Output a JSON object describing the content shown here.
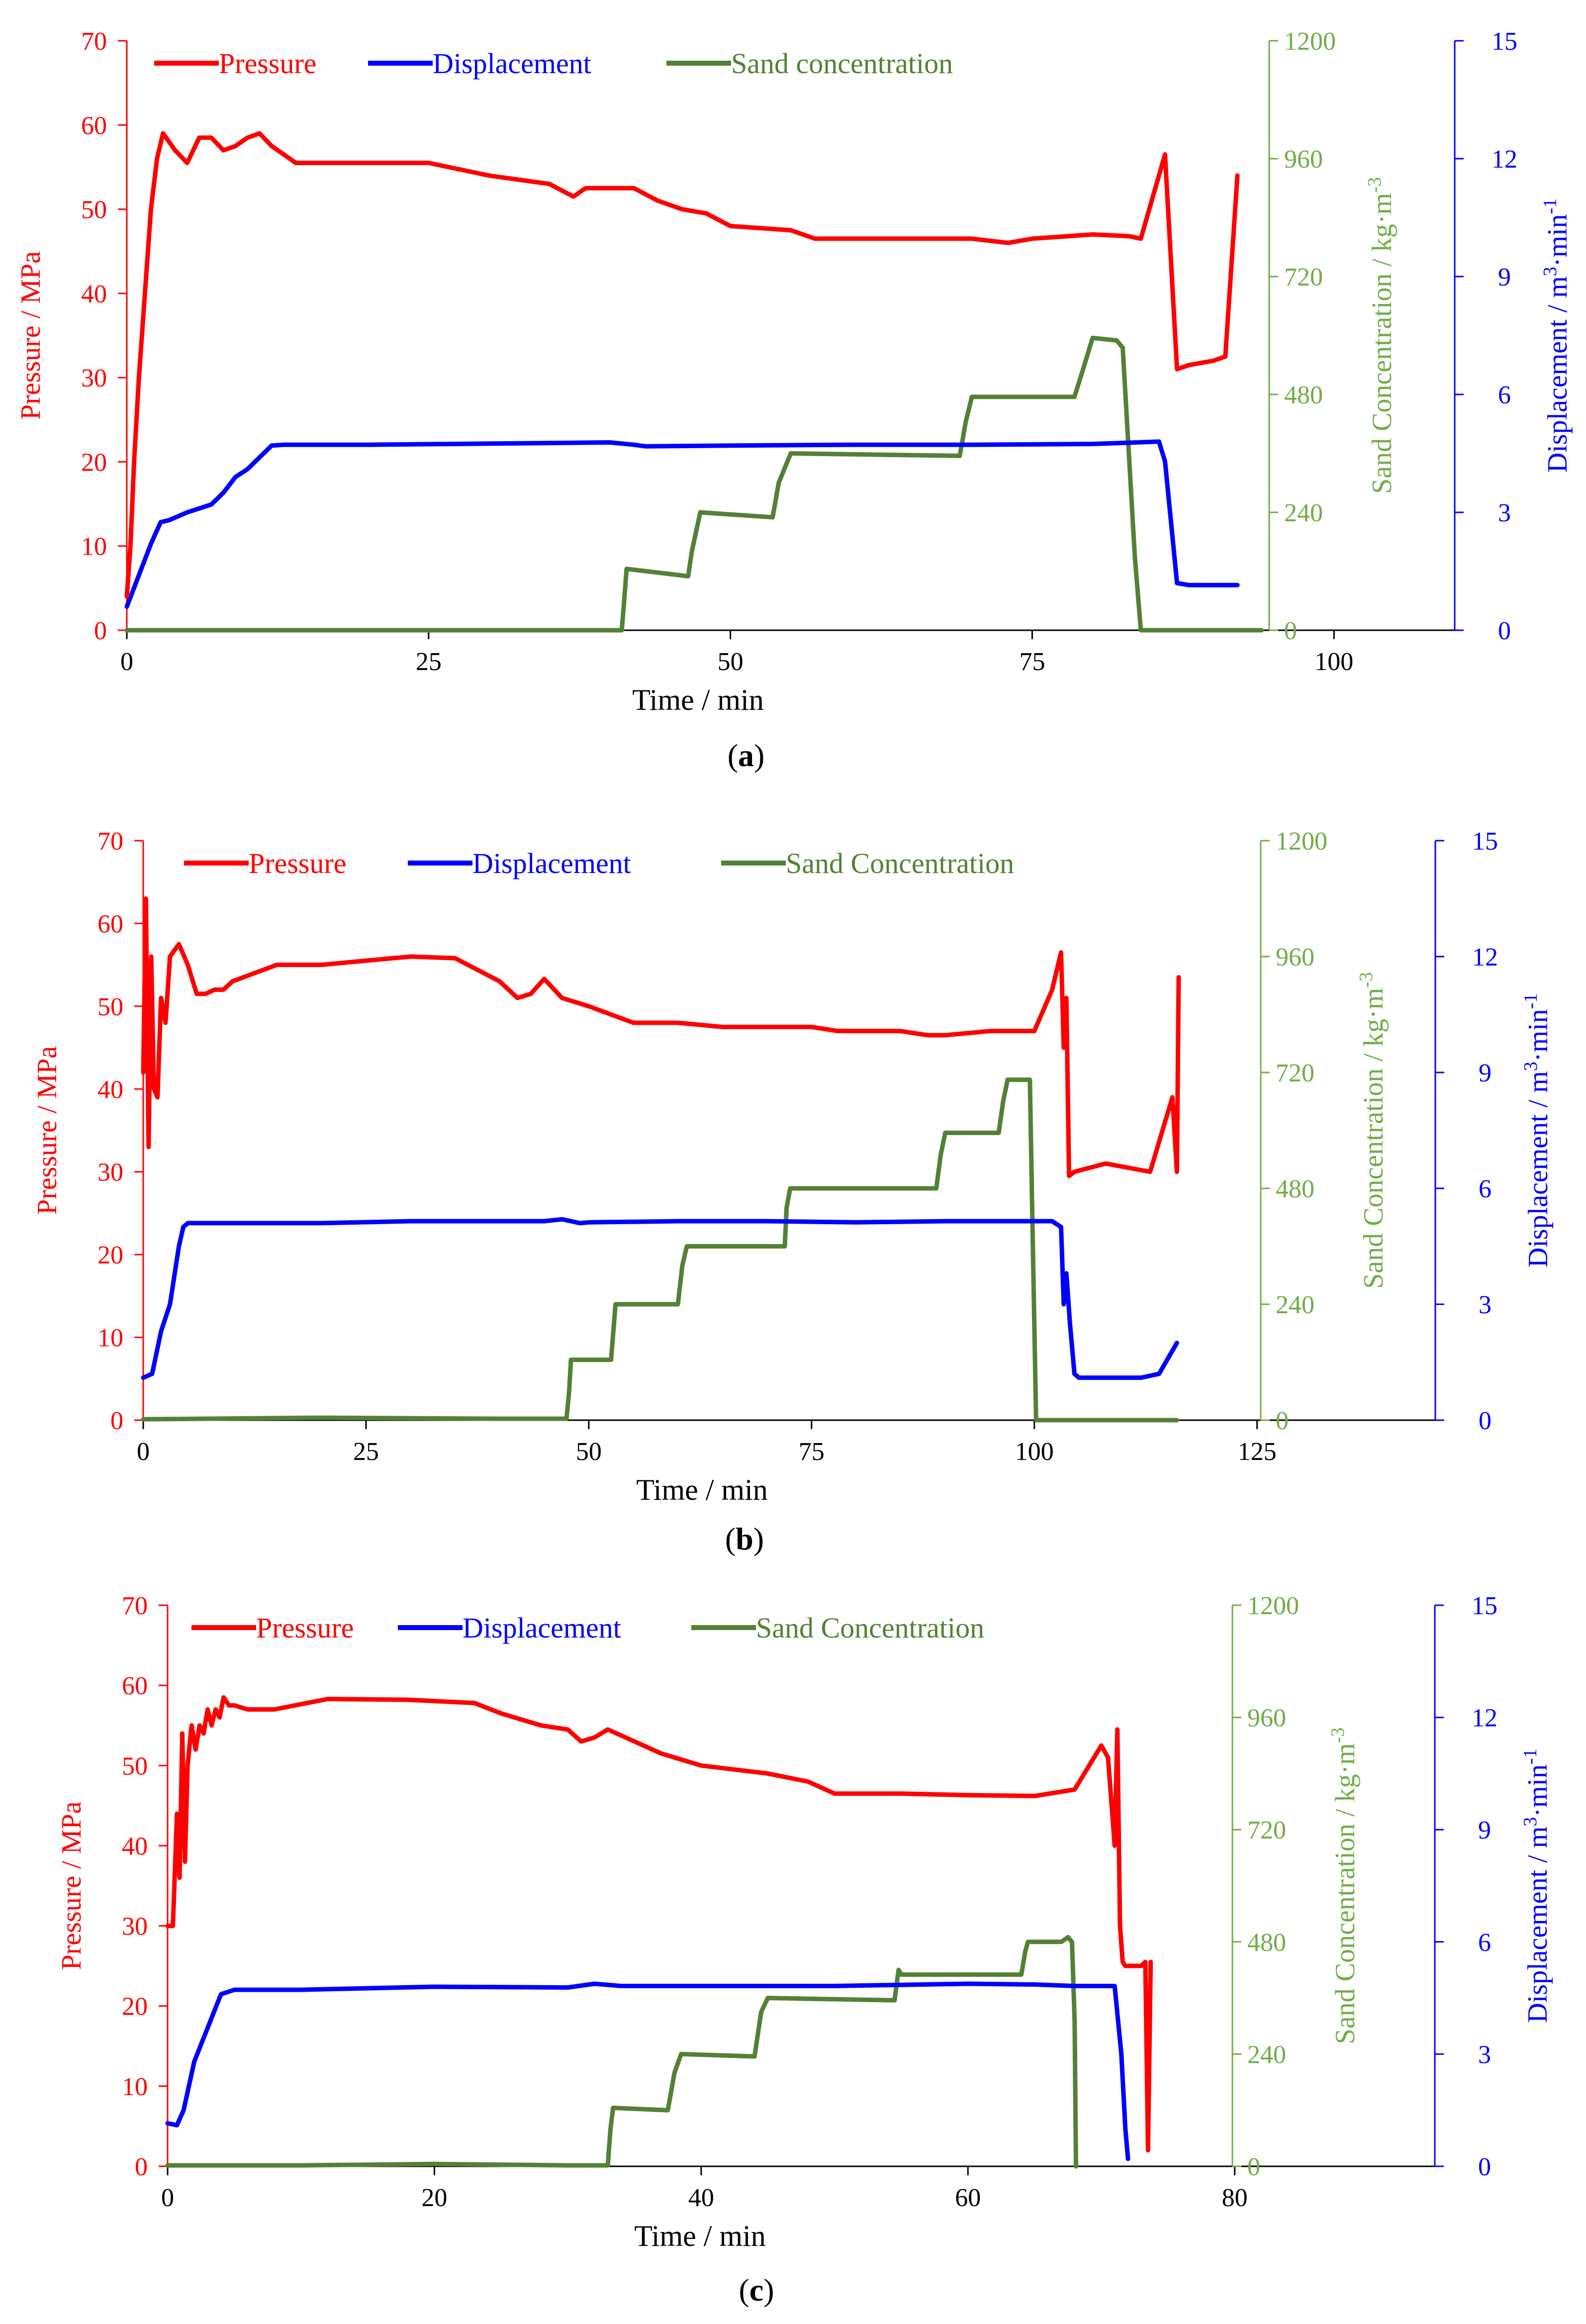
{
  "colors": {
    "pressure": "#ff0000",
    "displacement": "#0000ff",
    "sand": "#538135",
    "sand_axis": "#70ad47",
    "axis": "#000000"
  },
  "chart_data": [
    {
      "id": "a",
      "type": "line",
      "caption": "(a)",
      "caption_parts": {
        "open": "(",
        "letter": "a",
        "close": ")"
      },
      "xlabel": "Time / min",
      "xlim": [
        0,
        110
      ],
      "xticks": [
        0,
        25,
        50,
        75,
        100
      ],
      "xtick_labels": [
        "0",
        "25",
        "50",
        "75",
        "100"
      ],
      "axes": {
        "left": {
          "label": "Pressure / MPa",
          "lim": [
            0,
            70
          ],
          "ticks": [
            0,
            10,
            20,
            30,
            40,
            50,
            60,
            70
          ],
          "tick_labels": [
            "0",
            "10",
            "20",
            "30",
            "40",
            "50",
            "60",
            "70"
          ]
        },
        "sand": {
          "label": "Sand Concentration / kg·m",
          "label_sup": "-3",
          "lim": [
            0,
            1200
          ],
          "ticks": [
            0,
            240,
            480,
            720,
            960,
            1200
          ],
          "tick_labels": [
            "0",
            "240",
            "480",
            "720",
            "960",
            "1200"
          ]
        },
        "disp": {
          "label": "Displacement / m",
          "label_sup": "3",
          "label_mid": "·min",
          "label_sup2": "-1",
          "lim": [
            0,
            15
          ],
          "ticks": [
            0,
            3,
            6,
            9,
            12,
            15
          ],
          "tick_labels": [
            "0",
            "3",
            "6",
            "9",
            "12",
            "15"
          ]
        }
      },
      "legend": [
        "Pressure",
        "Displacement",
        "Sand concentration"
      ],
      "series": [
        {
          "name": "Pressure",
          "axis": "left",
          "x": [
            0,
            0.3,
            0.6,
            1,
            1.5,
            2,
            2.5,
            3,
            4,
            5,
            6,
            7,
            8,
            9,
            10,
            11,
            12,
            14,
            20,
            25,
            30,
            35,
            37,
            38,
            40,
            42,
            44,
            46,
            48,
            50,
            55,
            57,
            60,
            65,
            70,
            73,
            75,
            80,
            83,
            84,
            86,
            87,
            88,
            90,
            91,
            92
          ],
          "values": [
            4,
            10,
            20,
            30,
            40,
            50,
            56,
            59,
            57,
            55.5,
            58.5,
            58.5,
            57,
            57.5,
            58.5,
            59,
            57.5,
            55.5,
            55.5,
            55.5,
            54,
            53,
            51.5,
            52.5,
            52.5,
            52.5,
            51,
            50,
            49.5,
            48,
            47.5,
            46.5,
            46.5,
            46.5,
            46.5,
            46,
            46.5,
            47,
            46.8,
            46.5,
            56.5,
            31,
            31.5,
            32,
            32.5,
            54
          ]
        },
        {
          "name": "Displacement",
          "axis": "disp",
          "x": [
            0,
            2,
            2.8,
            3.5,
            5,
            7,
            8,
            9,
            10,
            11,
            12,
            13,
            20,
            30,
            40,
            42,
            43,
            50,
            60,
            70,
            80,
            85.5,
            86,
            87,
            88,
            92
          ],
          "values": [
            0.6,
            2.2,
            2.75,
            2.8,
            3.0,
            3.2,
            3.5,
            3.9,
            4.1,
            4.4,
            4.7,
            4.72,
            4.72,
            4.75,
            4.78,
            4.72,
            4.68,
            4.7,
            4.72,
            4.72,
            4.74,
            4.8,
            4.3,
            1.2,
            1.15,
            1.15
          ]
        },
        {
          "name": "Sand concentration",
          "axis": "sand",
          "x": [
            0,
            41,
            41.2,
            41.4,
            46.5,
            46.8,
            47.5,
            53.5,
            54,
            55,
            69,
            69.5,
            70,
            78.5,
            79.2,
            80,
            82,
            82.5,
            83.5,
            84,
            94
          ],
          "values": [
            0,
            0,
            60,
            125,
            110,
            160,
            240,
            230,
            300,
            360,
            355,
            425,
            475,
            475,
            530,
            595,
            590,
            575,
            150,
            0,
            0
          ]
        }
      ]
    },
    {
      "id": "b",
      "type": "line",
      "caption": "(b)",
      "caption_parts": {
        "open": "(",
        "letter": "b",
        "close": ")"
      },
      "xlabel": "Time / min",
      "xlim": [
        0,
        145
      ],
      "xticks": [
        0,
        25,
        50,
        75,
        100,
        125
      ],
      "xtick_labels": [
        "0",
        "25",
        "50",
        "75",
        "100",
        "125"
      ],
      "axes": {
        "left": {
          "label": "Pressure / MPa",
          "lim": [
            0,
            70
          ],
          "ticks": [
            0,
            10,
            20,
            30,
            40,
            50,
            60,
            70
          ],
          "tick_labels": [
            "0",
            "10",
            "20",
            "30",
            "40",
            "50",
            "60",
            "70"
          ]
        },
        "sand": {
          "label": "Sand Concentration / kg·m",
          "label_sup": "-3",
          "lim": [
            0,
            1200
          ],
          "ticks": [
            0,
            240,
            480,
            720,
            960,
            1200
          ],
          "tick_labels": [
            "0",
            "240",
            "480",
            "720",
            "960",
            "1200"
          ]
        },
        "disp": {
          "label": "Displacement / m",
          "label_sup": "3",
          "label_mid": "·min",
          "label_sup2": "-1",
          "lim": [
            0,
            15
          ],
          "ticks": [
            0,
            3,
            6,
            9,
            12,
            15
          ],
          "tick_labels": [
            "0",
            "3",
            "6",
            "9",
            "12",
            "15"
          ]
        }
      },
      "legend": [
        "Pressure",
        "Displacement",
        "Sand Concentration"
      ],
      "series": [
        {
          "name": "Pressure",
          "axis": "left",
          "x": [
            0,
            0.3,
            0.6,
            0.9,
            1.2,
            1.6,
            2,
            2.5,
            3,
            4,
            5,
            6,
            7,
            8,
            9,
            10,
            15,
            20,
            30,
            35,
            40,
            42,
            43.5,
            45,
            47,
            50,
            55,
            60,
            65,
            70,
            75,
            78,
            80,
            85,
            88,
            90,
            95,
            100,
            102,
            103,
            103.3,
            103.6,
            103.9,
            104.5,
            108,
            113,
            115.5,
            116,
            116.2
          ],
          "values": [
            42,
            63,
            33,
            56,
            40,
            39,
            51,
            48,
            56,
            57.5,
            55,
            51.5,
            51.5,
            52,
            52,
            53,
            55,
            55,
            56,
            55.8,
            53,
            51,
            51.5,
            53.3,
            51,
            50,
            48,
            48,
            47.5,
            47.5,
            47.5,
            47,
            47,
            47,
            46.5,
            46.5,
            47,
            47,
            52,
            56.5,
            45,
            51,
            29.5,
            30,
            31,
            30,
            39,
            30,
            53.5
          ]
        },
        {
          "name": "Displacement",
          "axis": "disp",
          "x": [
            0,
            1,
            2,
            3,
            4,
            4.5,
            5,
            10,
            20,
            30,
            40,
            45,
            47,
            49,
            50,
            60,
            70,
            80,
            90,
            100,
            102,
            103,
            103.3,
            103.6,
            104,
            104.5,
            105,
            112,
            114,
            116
          ],
          "values": [
            1.1,
            1.2,
            2.3,
            3.0,
            4.5,
            5.0,
            5.1,
            5.1,
            5.1,
            5.15,
            5.15,
            5.15,
            5.2,
            5.1,
            5.12,
            5.15,
            5.15,
            5.12,
            5.15,
            5.15,
            5.15,
            5.0,
            3.0,
            3.8,
            2.5,
            1.2,
            1.1,
            1.1,
            1.2,
            2.0
          ]
        },
        {
          "name": "Sand Concentration",
          "axis": "sand",
          "x": [
            0,
            20,
            40,
            47.5,
            47.8,
            48,
            52.5,
            53,
            60,
            60.5,
            61,
            72,
            72.2,
            72.6,
            89,
            89.5,
            90,
            96,
            96.5,
            97,
            99.5,
            99.8,
            100.2,
            116
          ],
          "values": [
            2,
            5,
            3,
            3,
            60,
            125,
            125,
            240,
            240,
            320,
            360,
            360,
            440,
            480,
            480,
            550,
            595,
            595,
            660,
            705,
            705,
            400,
            0,
            0
          ]
        }
      ]
    },
    {
      "id": "c",
      "type": "line",
      "caption": "(c)",
      "caption_parts": {
        "open": "(",
        "letter": "c",
        "close": ")"
      },
      "xlabel": "Time / min",
      "xlim": [
        0,
        95
      ],
      "xticks": [
        0,
        20,
        40,
        60,
        80
      ],
      "xtick_labels": [
        "0",
        "20",
        "40",
        "60",
        "80"
      ],
      "axes": {
        "left": {
          "label": "Pressure / MPa",
          "lim": [
            0,
            70
          ],
          "ticks": [
            0,
            10,
            20,
            30,
            40,
            50,
            60,
            70
          ],
          "tick_labels": [
            "0",
            "10",
            "20",
            "30",
            "40",
            "50",
            "60",
            "70"
          ]
        },
        "sand": {
          "label": "Sand Concentration / kg·m",
          "label_sup": "-3",
          "lim": [
            0,
            1200
          ],
          "ticks": [
            0,
            240,
            480,
            720,
            960,
            1200
          ],
          "tick_labels": [
            "0",
            "240",
            "480",
            "720",
            "960",
            "1200"
          ]
        },
        "disp": {
          "label": "Displacement / m",
          "label_sup": "3",
          "label_mid": "·min",
          "label_sup2": "-1",
          "lim": [
            0,
            15
          ],
          "ticks": [
            0,
            3,
            6,
            9,
            12,
            15
          ],
          "tick_labels": [
            "0",
            "3",
            "6",
            "9",
            "12",
            "15"
          ]
        }
      },
      "legend": [
        "Pressure",
        "Displacement",
        "Sand Concentration"
      ],
      "series": [
        {
          "name": "Pressure",
          "axis": "left",
          "x": [
            0,
            0.4,
            0.7,
            0.9,
            1.1,
            1.3,
            1.5,
            1.8,
            2.1,
            2.4,
            2.7,
            3,
            3.3,
            3.6,
            3.9,
            4.2,
            4.6,
            5,
            6,
            8,
            12,
            18,
            23,
            25,
            28,
            30,
            31,
            32,
            33,
            35,
            37,
            40,
            45,
            48,
            50,
            55,
            60,
            65,
            68,
            70,
            70.5,
            71,
            71.2,
            71.4,
            71.6,
            71.8,
            72,
            72.5,
            73,
            73.3,
            73.5,
            73.7
          ],
          "values": [
            30,
            30,
            44,
            36,
            54,
            38,
            50,
            55,
            52,
            55,
            54,
            57,
            55,
            57,
            56,
            58.5,
            57.5,
            57.5,
            57,
            57,
            58.3,
            58.2,
            57.8,
            56.5,
            55,
            54.5,
            53,
            53.5,
            54.5,
            53,
            51.5,
            50,
            49,
            48,
            46.5,
            46.5,
            46.3,
            46.2,
            47,
            52.5,
            51,
            40,
            54.5,
            30,
            25.5,
            25,
            25,
            25,
            25,
            25.5,
            2,
            25.5
          ]
        },
        {
          "name": "Displacement",
          "axis": "disp",
          "x": [
            0,
            0.7,
            1.2,
            2,
            3,
            4,
            5,
            10,
            20,
            30,
            32,
            34,
            40,
            50,
            60,
            65,
            68,
            71,
            71.5,
            71.8,
            72
          ],
          "values": [
            1.15,
            1.1,
            1.5,
            2.8,
            3.7,
            4.6,
            4.72,
            4.72,
            4.8,
            4.78,
            4.88,
            4.82,
            4.82,
            4.82,
            4.88,
            4.86,
            4.82,
            4.82,
            3.0,
            1.0,
            0.2
          ]
        },
        {
          "name": "Sand Concentration",
          "axis": "sand",
          "x": [
            0,
            10,
            20,
            30,
            33,
            33.2,
            33.4,
            37.5,
            38,
            38.5,
            44,
            44.5,
            45,
            54.5,
            54.8,
            55,
            64,
            64.3,
            64.5,
            67,
            67.5,
            67.8,
            68,
            68.1
          ],
          "values": [
            2,
            2,
            5,
            2,
            2,
            80,
            125,
            120,
            200,
            240,
            235,
            330,
            360,
            355,
            420,
            410,
            410,
            460,
            480,
            480,
            490,
            480,
            310,
            0
          ]
        }
      ]
    }
  ]
}
